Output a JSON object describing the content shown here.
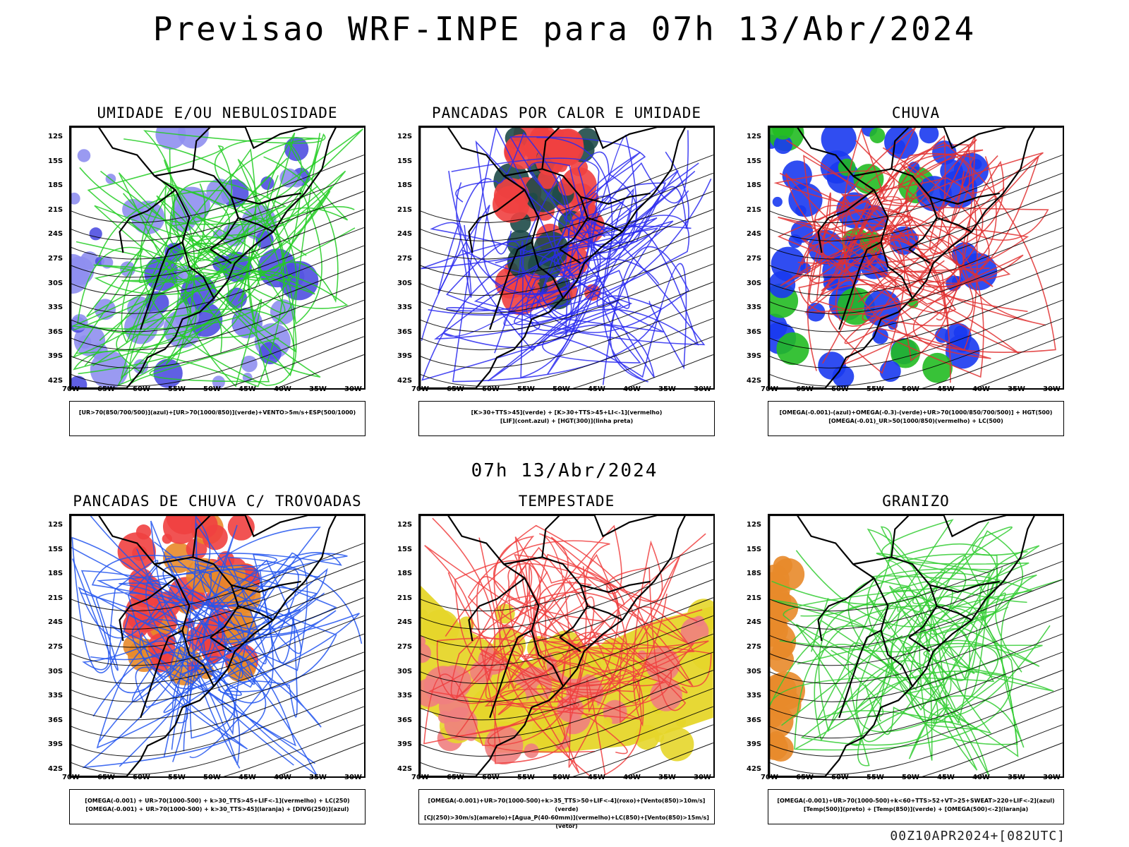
{
  "page": {
    "title": "Previsao WRF-INPE  para 07h 13/Abr/2024",
    "mid_title": "07h 13/Abr/2024",
    "footer": "00Z10APR2024+[082UTC]"
  },
  "axes": {
    "lat_labels": [
      "12S",
      "15S",
      "18S",
      "21S",
      "24S",
      "27S",
      "30S",
      "33S",
      "36S",
      "39S",
      "42S"
    ],
    "lon_labels": [
      "70W",
      "65W",
      "60W",
      "55W",
      "50W",
      "45W",
      "40W",
      "35W",
      "30W"
    ]
  },
  "panels": [
    {
      "id": "umidade",
      "title": "UMIDADE E/OU NEBULOSIDADE",
      "legend": [
        "[UR>70(850/700/500)](azul)+[UR>70(1000/850)](verde)+VENTO>5m/s+ESP(500/1000)"
      ],
      "colors": {
        "fill": "#8f8ff0",
        "fill_dark": "#4f4fe0",
        "contour": "#22cc22",
        "lines": "#e03030"
      }
    },
    {
      "id": "pancadas-calor",
      "title": "PANCADAS POR CALOR E UMIDADE",
      "legend": [
        "[K>30+TTS>45](verde) + [K>30+TTS>45+LI<-1](vermelho)",
        "[LIF](cont.azul) + [HGT(300)](linha preta)"
      ],
      "colors": {
        "fill": "#f04040",
        "fill_dark": "#1e4a48",
        "contour": "#2a2af0"
      }
    },
    {
      "id": "chuva",
      "title": "CHUVA",
      "legend": [
        "[OMEGA(-0.001)-(azul)+OMEGA(-0.3)-(verde)+UR>70(1000/850/700/500)] + HGT(500)",
        "[OMEGA(-0.01)_UR>50(1000/850)(vermelho) + LC(500)"
      ],
      "colors": {
        "fill": "#1a3af0",
        "fill_dark": "#22bb22",
        "contour": "#e03030"
      }
    },
    {
      "id": "trovoadas",
      "title": "PANCADAS DE CHUVA C/ TROVOADAS",
      "legend": [
        "[OMEGA(-0.001) + UR>70(1000-500) + k>30_TTS>45+LIF<-1](vermelho) + LC(250)",
        "[OMEGA(-0.001) + UR>70(1000-500) + k>30_TTS>45](laranja) + [DIVG(250)](azul)"
      ],
      "colors": {
        "fill": "#f04040",
        "fill_dark": "#e88a2a",
        "contour": "#2255ee"
      }
    },
    {
      "id": "tempestade",
      "title": "TEMPESTADE",
      "legend": [
        "[OMEGA(-0.001)+UR>70(1000-500)+k>35_TTS>50+LIF<-4](roxo)+[Vento(850)>10m/s](verde)",
        "[CJ(250)>30m/s](amarelo)+[Agua_P(40-60mm)](vermelho)+LC(850)+[Vento(850)>15m/s](vetor)"
      ],
      "colors": {
        "fill": "#e6d62a",
        "fill_dark": "#f08080",
        "contour": "#f04040"
      }
    },
    {
      "id": "granizo",
      "title": "GRANIZO",
      "legend": [
        "[OMEGA(-0.001)+UR>70(1000-500)+k<60+TTS>52+VT>25+SWEAT>220+LIF<-2](azul)",
        "[Temp(500)](preto) + [Temp(850)](verde) + [OMEGA(500)<-2](laranja)"
      ],
      "colors": {
        "fill": "#ffffff",
        "fill_dark": "#e88a2a",
        "contour": "#33cc33"
      }
    }
  ]
}
